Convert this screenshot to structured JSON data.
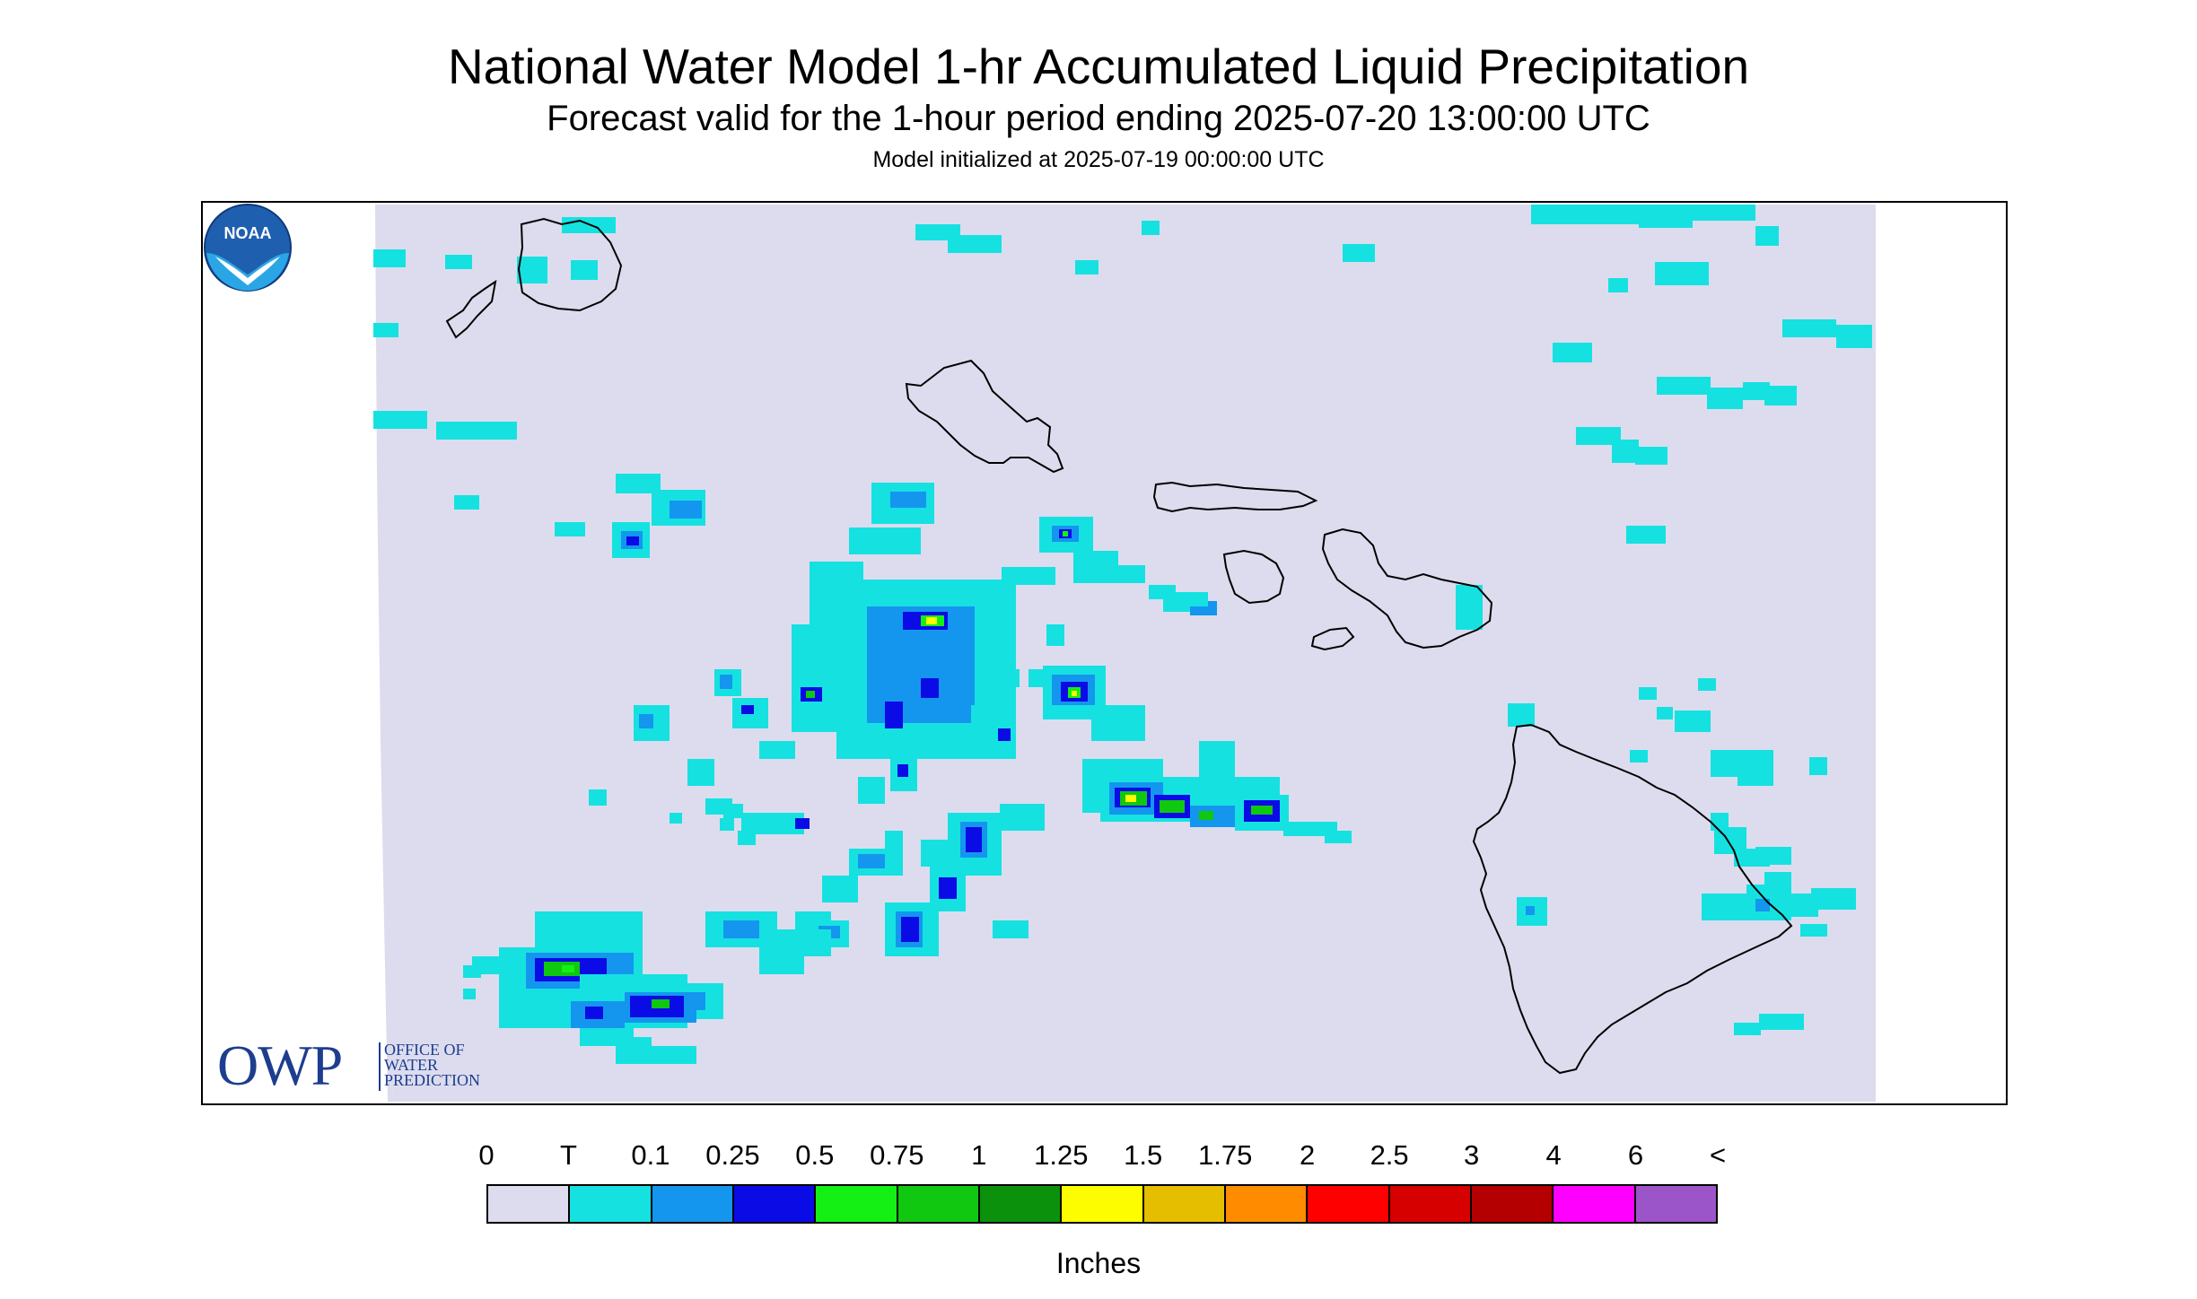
{
  "title": "National Water Model 1-hr Accumulated Liquid Precipitation",
  "subtitle": "Forecast valid for the 1-hour period ending 2025-07-20 13:00:00 UTC",
  "init": "Model initialized at 2025-07-19 00:00:00 UTC",
  "logo_owp": {
    "abbr": "OWP",
    "line1": "OFFICE OF",
    "line2": "WATER",
    "line3": "PREDICTION"
  },
  "logo_noaa": "NOAA",
  "legend": {
    "unit_label": "Inches",
    "ticks": [
      "0",
      "T",
      "0.1",
      "0.25",
      "0.5",
      "0.75",
      "1",
      "1.25",
      "1.5",
      "1.75",
      "2",
      "2.5",
      "3",
      "4",
      "6",
      "<"
    ],
    "colors": [
      "#dcdcee",
      "#16e1e1",
      "#1496ef",
      "#0b0be6",
      "#14f014",
      "#10c810",
      "#0b910b",
      "#fdfd00",
      "#e6be00",
      "#ff8c00",
      "#ff0000",
      "#d70000",
      "#b40000",
      "#ff00ff",
      "#9b55c8"
    ]
  },
  "colors": {
    "ocean": "#dcdcee",
    "title_text": "#000000",
    "owp_blue": "#1d3d8f",
    "noaa_blue": "#1f5faf"
  }
}
